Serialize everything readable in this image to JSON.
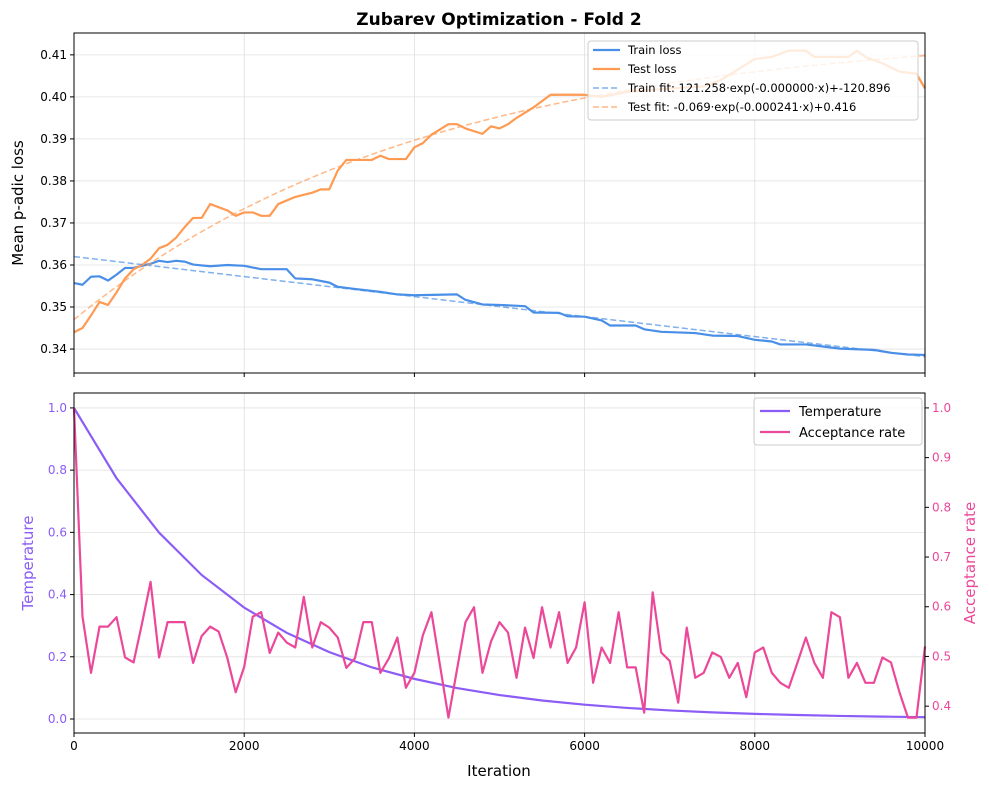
{
  "title": "Zubarev Optimization - Fold 2",
  "colors": {
    "train": "#4a8fe7",
    "test": "#ff9a52",
    "temperature": "#8b5cf6",
    "acceptance": "#ec4899"
  },
  "chart_data": [
    {
      "type": "line",
      "ylabel": "Mean p-adic loss",
      "xlim": [
        0,
        10000
      ],
      "ylim": [
        0.3343,
        0.4152
      ],
      "yticks": [
        "0.34",
        "0.35",
        "0.36",
        "0.37",
        "0.38",
        "0.39",
        "0.40",
        "0.41"
      ],
      "xticks": [
        0,
        2000,
        4000,
        6000,
        8000,
        10000
      ],
      "grid": true,
      "legend_position": "top-right",
      "series": [
        {
          "name": "Train loss",
          "style": "solid",
          "x": [
            0,
            100,
            200,
            300,
            400,
            500,
            600,
            700,
            800,
            900,
            1000,
            1100,
            1200,
            1300,
            1400,
            1600,
            1800,
            2000,
            2200,
            2500,
            2600,
            2800,
            3000,
            3100,
            3300,
            3600,
            3800,
            4000,
            4500,
            4600,
            4800,
            5000,
            5300,
            5400,
            5700,
            5800,
            6000,
            6200,
            6300,
            6600,
            6700,
            6900,
            7300,
            7500,
            7800,
            8000,
            8200,
            8300,
            8600,
            8800,
            9000,
            9400,
            9600,
            9800,
            10000
          ],
          "y": [
            0.3557,
            0.3553,
            0.3572,
            0.3573,
            0.3563,
            0.3577,
            0.3593,
            0.3593,
            0.3598,
            0.3603,
            0.361,
            0.3607,
            0.361,
            0.3608,
            0.3601,
            0.3597,
            0.36,
            0.3598,
            0.359,
            0.359,
            0.3568,
            0.3566,
            0.3558,
            0.3548,
            0.3543,
            0.3536,
            0.353,
            0.3528,
            0.353,
            0.3517,
            0.3506,
            0.3505,
            0.3502,
            0.3487,
            0.3486,
            0.3478,
            0.3477,
            0.3468,
            0.3456,
            0.3456,
            0.3447,
            0.3441,
            0.3438,
            0.3432,
            0.3431,
            0.3422,
            0.3418,
            0.3411,
            0.3411,
            0.3406,
            0.3401,
            0.3398,
            0.3391,
            0.3387,
            0.3386
          ]
        },
        {
          "name": "Test loss",
          "style": "solid",
          "x": [
            0,
            100,
            200,
            300,
            400,
            500,
            600,
            700,
            800,
            900,
            1000,
            1100,
            1200,
            1300,
            1400,
            1500,
            1600,
            1800,
            1900,
            2000,
            2100,
            2200,
            2300,
            2400,
            2600,
            2800,
            2900,
            3000,
            3100,
            3200,
            3400,
            3500,
            3600,
            3700,
            3900,
            4000,
            4100,
            4200,
            4400,
            4500,
            4600,
            4800,
            4900,
            5000,
            5100,
            5200,
            5400,
            5600,
            6000,
            6200,
            6500,
            7000,
            7400,
            7600,
            7800,
            8000,
            8200,
            8400,
            8600,
            8700,
            9100,
            9200,
            9300,
            9500,
            9700,
            9900,
            10000
          ],
          "y": [
            0.344,
            0.345,
            0.348,
            0.3512,
            0.3505,
            0.3535,
            0.3568,
            0.359,
            0.36,
            0.3615,
            0.364,
            0.3648,
            0.3665,
            0.369,
            0.3712,
            0.3712,
            0.3745,
            0.373,
            0.3717,
            0.3725,
            0.3725,
            0.3717,
            0.3717,
            0.3745,
            0.3762,
            0.3772,
            0.378,
            0.378,
            0.3825,
            0.385,
            0.385,
            0.385,
            0.386,
            0.3852,
            0.3852,
            0.388,
            0.389,
            0.391,
            0.3935,
            0.3935,
            0.3925,
            0.3912,
            0.393,
            0.3925,
            0.3935,
            0.395,
            0.3975,
            0.4005,
            0.4005,
            0.4,
            0.4012,
            0.402,
            0.4025,
            0.404,
            0.4065,
            0.409,
            0.4095,
            0.411,
            0.411,
            0.4095,
            0.4095,
            0.411,
            0.4095,
            0.408,
            0.406,
            0.4055,
            0.402
          ]
        },
        {
          "name": "Train fit: 121.258·exp(-0.000000·x)+-120.896",
          "style": "dashed",
          "x": [
            0,
            10000
          ],
          "y": [
            0.362,
            0.3382
          ]
        },
        {
          "name": "Test fit: -0.069·exp(-0.000241·x)+0.416",
          "style": "dashed",
          "fit": {
            "a": -0.069,
            "b": 0.000241,
            "c": 0.416
          }
        }
      ]
    },
    {
      "type": "line",
      "xlabel": "Iteration",
      "ylabel_left": "Temperature",
      "ylabel_right": "Acceptance rate",
      "xlim": [
        0,
        10000
      ],
      "ylim_left": [
        -0.045,
        1.048
      ],
      "ylim_right": [
        0.346,
        1.03
      ],
      "xticks": [
        "0",
        "2000",
        "4000",
        "6000",
        "8000",
        "10000"
      ],
      "yticks_left": [
        "0.0",
        "0.2",
        "0.4",
        "0.6",
        "0.8",
        "1.0"
      ],
      "yticks_right": [
        "0.4",
        "0.5",
        "0.6",
        "0.7",
        "0.8",
        "0.9",
        "1.0"
      ],
      "grid": true,
      "legend_position": "top-right",
      "series": [
        {
          "name": "Temperature",
          "axis": "left",
          "x": [
            0,
            500,
            1000,
            1500,
            2000,
            2500,
            3000,
            3500,
            4000,
            4500,
            5000,
            5500,
            6000,
            6500,
            7000,
            7500,
            8000,
            8500,
            9000,
            9500,
            10000
          ],
          "y": [
            1.0,
            0.774,
            0.599,
            0.463,
            0.358,
            0.277,
            0.215,
            0.166,
            0.129,
            0.0994,
            0.0769,
            0.0595,
            0.0461,
            0.0356,
            0.0276,
            0.0213,
            0.0165,
            0.0128,
            0.0099,
            0.0077,
            0.0059
          ]
        },
        {
          "name": "Acceptance rate",
          "axis": "right",
          "x_step": 100,
          "y": [
            1.0,
            0.58,
            0.467,
            0.56,
            0.56,
            0.579,
            0.498,
            0.488,
            0.567,
            0.65,
            0.498,
            0.569,
            0.569,
            0.569,
            0.487,
            0.541,
            0.56,
            0.55,
            0.498,
            0.428,
            0.479,
            0.58,
            0.589,
            0.507,
            0.548,
            0.528,
            0.518,
            0.62,
            0.518,
            0.569,
            0.558,
            0.538,
            0.477,
            0.496,
            0.569,
            0.569,
            0.467,
            0.496,
            0.538,
            0.437,
            0.467,
            0.543,
            0.589,
            0.483,
            0.377,
            0.473,
            0.569,
            0.599,
            0.467,
            0.53,
            0.569,
            0.548,
            0.457,
            0.558,
            0.497,
            0.599,
            0.518,
            0.589,
            0.487,
            0.518,
            0.609,
            0.447,
            0.518,
            0.487,
            0.589,
            0.478,
            0.478,
            0.387,
            0.629,
            0.508,
            0.491,
            0.407,
            0.558,
            0.457,
            0.467,
            0.508,
            0.499,
            0.457,
            0.487,
            0.418,
            0.508,
            0.518,
            0.467,
            0.447,
            0.437,
            0.487,
            0.538,
            0.487,
            0.457,
            0.589,
            0.579,
            0.457,
            0.487,
            0.447,
            0.447,
            0.498,
            0.488,
            0.428,
            0.377,
            0.377,
            0.52
          ]
        }
      ]
    }
  ]
}
